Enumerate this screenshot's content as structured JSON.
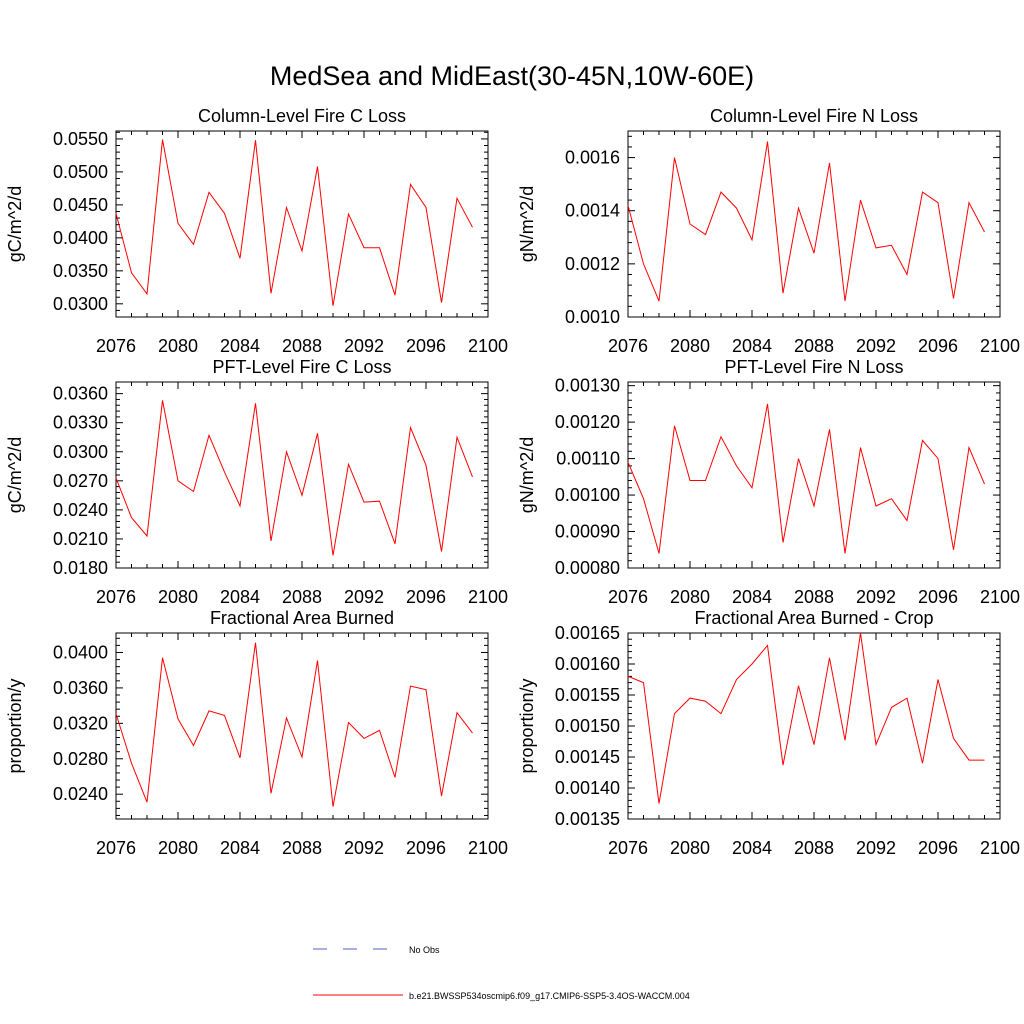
{
  "page": {
    "title": "MedSea and MidEast(30-45N,10W-60E)"
  },
  "legend": {
    "obs_label": "No Obs",
    "obs_color": "#4f5fb5",
    "model_label": "b.e21.BWSSP534oscmip6.f09_g17.CMIP6-SSP5-3.4OS-WACCM.004",
    "model_color": "#ff0000"
  },
  "chart_data": [
    {
      "type": "line",
      "title": "Column-Level Fire C Loss",
      "xlabel": "",
      "ylabel": "gC/m^2/d",
      "xlim": [
        2076,
        2100
      ],
      "ylim": [
        0.028,
        0.0562
      ],
      "xticks": [
        "2076",
        "2080",
        "2084",
        "2088",
        "2092",
        "2096",
        "2100"
      ],
      "yticks": [
        "0.0300",
        "0.0350",
        "0.0400",
        "0.0450",
        "0.0500",
        "0.0550"
      ],
      "series": [
        {
          "name": "b.e21.BWSSP534oscmip6.f09_g17.CMIP6-SSP5-3.4OS-WACCM.004",
          "color": "#ff0000",
          "x": [
            2076,
            2077,
            2078,
            2079,
            2080,
            2081,
            2082,
            2083,
            2084,
            2085,
            2086,
            2087,
            2088,
            2089,
            2090,
            2091,
            2092,
            2093,
            2094,
            2095,
            2096,
            2097,
            2098,
            2099
          ],
          "values": [
            0.0437,
            0.0347,
            0.0315,
            0.0549,
            0.0422,
            0.039,
            0.0469,
            0.0437,
            0.0369,
            0.0548,
            0.0316,
            0.0446,
            0.038,
            0.0508,
            0.0297,
            0.0436,
            0.0385,
            0.0385,
            0.0313,
            0.0481,
            0.0446,
            0.0302,
            0.046,
            0.0416
          ]
        }
      ]
    },
    {
      "type": "line",
      "title": "Column-Level Fire N Loss",
      "xlabel": "",
      "ylabel": "gN/m^2/d",
      "xlim": [
        2076,
        2100
      ],
      "ylim": [
        0.001,
        0.0017
      ],
      "xticks": [
        "2076",
        "2080",
        "2084",
        "2088",
        "2092",
        "2096",
        "2100"
      ],
      "yticks": [
        "0.0010",
        "0.0012",
        "0.0014",
        "0.0016"
      ],
      "series": [
        {
          "name": "b.e21.BWSSP534oscmip6.f09_g17.CMIP6-SSP5-3.4OS-WACCM.004",
          "color": "#ff0000",
          "x": [
            2076,
            2077,
            2078,
            2079,
            2080,
            2081,
            2082,
            2083,
            2084,
            2085,
            2086,
            2087,
            2088,
            2089,
            2090,
            2091,
            2092,
            2093,
            2094,
            2095,
            2096,
            2097,
            2098,
            2099
          ],
          "values": [
            0.00142,
            0.0012,
            0.00106,
            0.0016,
            0.00135,
            0.00131,
            0.00147,
            0.00141,
            0.00129,
            0.00166,
            0.00109,
            0.00141,
            0.00124,
            0.00158,
            0.00106,
            0.00144,
            0.00126,
            0.00127,
            0.00116,
            0.00147,
            0.00143,
            0.00107,
            0.00143,
            0.00132
          ]
        }
      ]
    },
    {
      "type": "line",
      "title": "PFT-Level Fire C Loss",
      "xlabel": "",
      "ylabel": "gC/m^2/d",
      "xlim": [
        2076,
        2100
      ],
      "ylim": [
        0.018,
        0.0372
      ],
      "xticks": [
        "2076",
        "2080",
        "2084",
        "2088",
        "2092",
        "2096",
        "2100"
      ],
      "yticks": [
        "0.0180",
        "0.0210",
        "0.0240",
        "0.0270",
        "0.0300",
        "0.0330",
        "0.0360"
      ],
      "series": [
        {
          "name": "b.e21.BWSSP534oscmip6.f09_g17.CMIP6-SSP5-3.4OS-WACCM.004",
          "color": "#ff0000",
          "x": [
            2076,
            2077,
            2078,
            2079,
            2080,
            2081,
            2082,
            2083,
            2084,
            2085,
            2086,
            2087,
            2088,
            2089,
            2090,
            2091,
            2092,
            2093,
            2094,
            2095,
            2096,
            2097,
            2098,
            2099
          ],
          "values": [
            0.0273,
            0.0232,
            0.0213,
            0.0353,
            0.027,
            0.0259,
            0.0317,
            0.0279,
            0.0244,
            0.035,
            0.0208,
            0.03,
            0.0255,
            0.0319,
            0.0193,
            0.0287,
            0.0248,
            0.0249,
            0.0205,
            0.0325,
            0.0286,
            0.0197,
            0.0315,
            0.0274
          ]
        }
      ]
    },
    {
      "type": "line",
      "title": "PFT-Level Fire N Loss",
      "xlabel": "",
      "ylabel": "gN/m^2/d",
      "xlim": [
        2076,
        2100
      ],
      "ylim": [
        0.0008,
        0.00131
      ],
      "xticks": [
        "2076",
        "2080",
        "2084",
        "2088",
        "2092",
        "2096",
        "2100"
      ],
      "yticks": [
        "0.00080",
        "0.00090",
        "0.00100",
        "0.00110",
        "0.00120",
        "0.00130"
      ],
      "series": [
        {
          "name": "b.e21.BWSSP534oscmip6.f09_g17.CMIP6-SSP5-3.4OS-WACCM.004",
          "color": "#ff0000",
          "x": [
            2076,
            2077,
            2078,
            2079,
            2080,
            2081,
            2082,
            2083,
            2084,
            2085,
            2086,
            2087,
            2088,
            2089,
            2090,
            2091,
            2092,
            2093,
            2094,
            2095,
            2096,
            2097,
            2098,
            2099
          ],
          "values": [
            0.00109,
            0.00099,
            0.00084,
            0.00119,
            0.00104,
            0.00104,
            0.00116,
            0.00108,
            0.00102,
            0.00125,
            0.00087,
            0.0011,
            0.00097,
            0.00118,
            0.00084,
            0.00113,
            0.00097,
            0.00099,
            0.00093,
            0.00115,
            0.0011,
            0.00085,
            0.00113,
            0.00103
          ]
        }
      ]
    },
    {
      "type": "line",
      "title": "Fractional Area Burned",
      "xlabel": "",
      "ylabel": "proportion/y",
      "xlim": [
        2076,
        2100
      ],
      "ylim": [
        0.0212,
        0.0422
      ],
      "xticks": [
        "2076",
        "2080",
        "2084",
        "2088",
        "2092",
        "2096",
        "2100"
      ],
      "yticks": [
        "0.0240",
        "0.0280",
        "0.0320",
        "0.0360",
        "0.0400"
      ],
      "series": [
        {
          "name": "b.e21.BWSSP534oscmip6.f09_g17.CMIP6-SSP5-3.4OS-WACCM.004",
          "color": "#ff0000",
          "x": [
            2076,
            2077,
            2078,
            2079,
            2080,
            2081,
            2082,
            2083,
            2084,
            2085,
            2086,
            2087,
            2088,
            2089,
            2090,
            2091,
            2092,
            2093,
            2094,
            2095,
            2096,
            2097,
            2098,
            2099
          ],
          "values": [
            0.0331,
            0.0275,
            0.0231,
            0.0394,
            0.0325,
            0.0295,
            0.0334,
            0.0329,
            0.0281,
            0.0411,
            0.0241,
            0.0326,
            0.0282,
            0.0391,
            0.0226,
            0.0321,
            0.0303,
            0.0312,
            0.0259,
            0.0362,
            0.0358,
            0.0238,
            0.0332,
            0.0309
          ]
        }
      ]
    },
    {
      "type": "line",
      "title": "Fractional Area Burned - Crop",
      "xlabel": "",
      "ylabel": "proportion/y",
      "xlim": [
        2076,
        2100
      ],
      "ylim": [
        0.00135,
        0.00165
      ],
      "xticks": [
        "2076",
        "2080",
        "2084",
        "2088",
        "2092",
        "2096",
        "2100"
      ],
      "yticks": [
        "0.00135",
        "0.00140",
        "0.00145",
        "0.00150",
        "0.00155",
        "0.00160",
        "0.00165"
      ],
      "series": [
        {
          "name": "b.e21.BWSSP534oscmip6.f09_g17.CMIP6-SSP5-3.4OS-WACCM.004",
          "color": "#ff0000",
          "x": [
            2076,
            2077,
            2078,
            2079,
            2080,
            2081,
            2082,
            2083,
            2084,
            2085,
            2086,
            2087,
            2088,
            2089,
            2090,
            2091,
            2092,
            2093,
            2094,
            2095,
            2096,
            2097,
            2098,
            2099
          ],
          "values": [
            0.00158,
            0.00157,
            0.001375,
            0.00152,
            0.001545,
            0.00154,
            0.00152,
            0.001575,
            0.0016,
            0.00163,
            0.001437,
            0.001565,
            0.00147,
            0.00161,
            0.001477,
            0.00165,
            0.00147,
            0.00153,
            0.001545,
            0.00144,
            0.001575,
            0.00148,
            0.001445,
            0.001445
          ]
        }
      ]
    }
  ]
}
